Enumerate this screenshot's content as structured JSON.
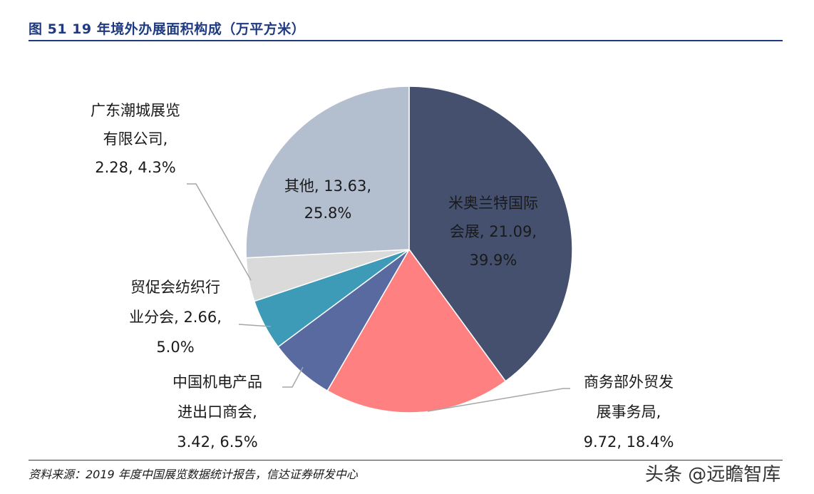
{
  "header": {
    "title": "图 51  19 年境外办展面积构成（万平方米）"
  },
  "footer": {
    "source": "资料来源：2019 年度中国展览数据统计报告，信达证券研发中心",
    "watermark": "头条 @远瞻智库"
  },
  "chart_data": {
    "type": "pie",
    "title": "19 年境外办展面积构成（万平方米）",
    "slices": [
      {
        "name": "米奥兰特国际会展",
        "value": 21.09,
        "percent": "39.9%",
        "color": "#44506e",
        "label_lines": [
          "米奥兰特国际",
          "会展, 21.09,",
          "39.9%"
        ]
      },
      {
        "name": "商务部外贸发展事务局",
        "value": 9.72,
        "percent": "18.4%",
        "color": "#ff8080",
        "label_lines": [
          "商务部外贸发",
          "展事务局,",
          "9.72, 18.4%"
        ]
      },
      {
        "name": "中国机电产品进出口商会",
        "value": 3.42,
        "percent": "6.5%",
        "color": "#596aa0",
        "label_lines": [
          "中国机电产品",
          "进出口商会,",
          "3.42, 6.5%"
        ]
      },
      {
        "name": "贸促会纺织行业分会",
        "value": 2.66,
        "percent": "5.0%",
        "color": "#3e9bb7",
        "label_lines": [
          "贸促会纺织行",
          "业分会, 2.66,",
          "5.0%"
        ]
      },
      {
        "name": "广东潮城展览有限公司",
        "value": 2.28,
        "percent": "4.3%",
        "color": "#dadada",
        "label_lines": [
          "广东潮城展览",
          "有限公司,",
          "2.28, 4.3%"
        ]
      },
      {
        "name": "其他",
        "value": 13.63,
        "percent": "25.8%",
        "color": "#b3becf",
        "label_lines": [
          "其他, 13.63,",
          "25.8%"
        ]
      }
    ]
  }
}
